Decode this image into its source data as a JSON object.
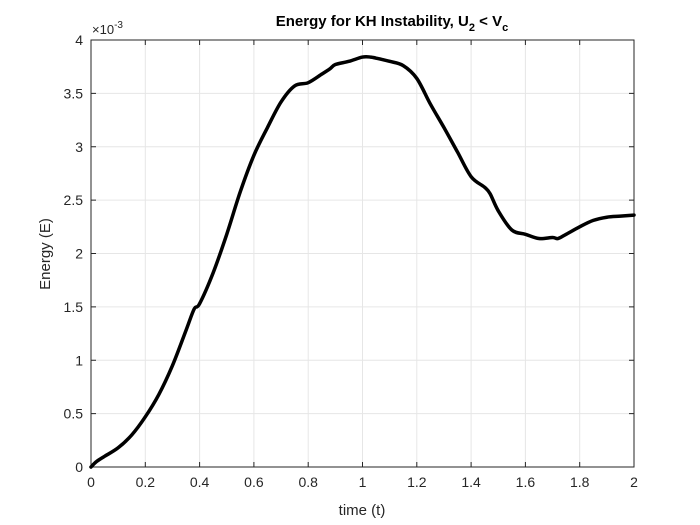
{
  "chart_data": {
    "type": "line",
    "title": {
      "main": "Energy for KH Instability, U",
      "sub1": "2",
      "middle": " < V",
      "sub2": "c"
    },
    "xlabel": "time (t)",
    "ylabel": "Energy (E)",
    "y_exponent": {
      "prefix": "×10",
      "power": "-3"
    },
    "xlim": [
      0,
      2
    ],
    "ylim": [
      0,
      0.004
    ],
    "grid": true,
    "x_ticks": [
      0,
      0.2,
      0.4,
      0.6,
      0.8,
      1,
      1.2,
      1.4,
      1.6,
      1.8,
      2
    ],
    "x_tick_labels": [
      "0",
      "0.2",
      "0.4",
      "0.6",
      "0.8",
      "1",
      "1.2",
      "1.4",
      "1.6",
      "1.8",
      "2"
    ],
    "y_ticks": [
      0,
      0.0005,
      0.001,
      0.0015,
      0.002,
      0.0025,
      0.003,
      0.0035,
      0.004
    ],
    "y_tick_labels": [
      "0",
      "0.5",
      "1",
      "1.5",
      "2",
      "2.5",
      "3",
      "3.5",
      "4"
    ],
    "series": [
      {
        "color": "#000000",
        "x": [
          0,
          0.02,
          0.05,
          0.1,
          0.15,
          0.2,
          0.25,
          0.3,
          0.35,
          0.38,
          0.4,
          0.45,
          0.5,
          0.55,
          0.6,
          0.65,
          0.7,
          0.75,
          0.8,
          0.85,
          0.88,
          0.9,
          0.95,
          1.0,
          1.03,
          1.05,
          1.1,
          1.15,
          1.2,
          1.25,
          1.3,
          1.35,
          1.4,
          1.45,
          1.47,
          1.5,
          1.55,
          1.6,
          1.65,
          1.7,
          1.72,
          1.75,
          1.8,
          1.85,
          1.9,
          1.95,
          2.0
        ],
        "y": [
          0,
          5e-05,
          0.0001,
          0.00018,
          0.0003,
          0.00047,
          0.00068,
          0.00095,
          0.00128,
          0.00148,
          0.00153,
          0.00182,
          0.00218,
          0.00258,
          0.00292,
          0.00318,
          0.00342,
          0.00357,
          0.0036,
          0.00368,
          0.00373,
          0.00377,
          0.0038,
          0.00384,
          0.00384,
          0.00383,
          0.0038,
          0.00376,
          0.00364,
          0.0034,
          0.00318,
          0.00295,
          0.00272,
          0.00262,
          0.00256,
          0.0024,
          0.00222,
          0.00218,
          0.00214,
          0.00215,
          0.00214,
          0.00218,
          0.00225,
          0.00231,
          0.00234,
          0.00235,
          0.00236
        ]
      }
    ]
  }
}
